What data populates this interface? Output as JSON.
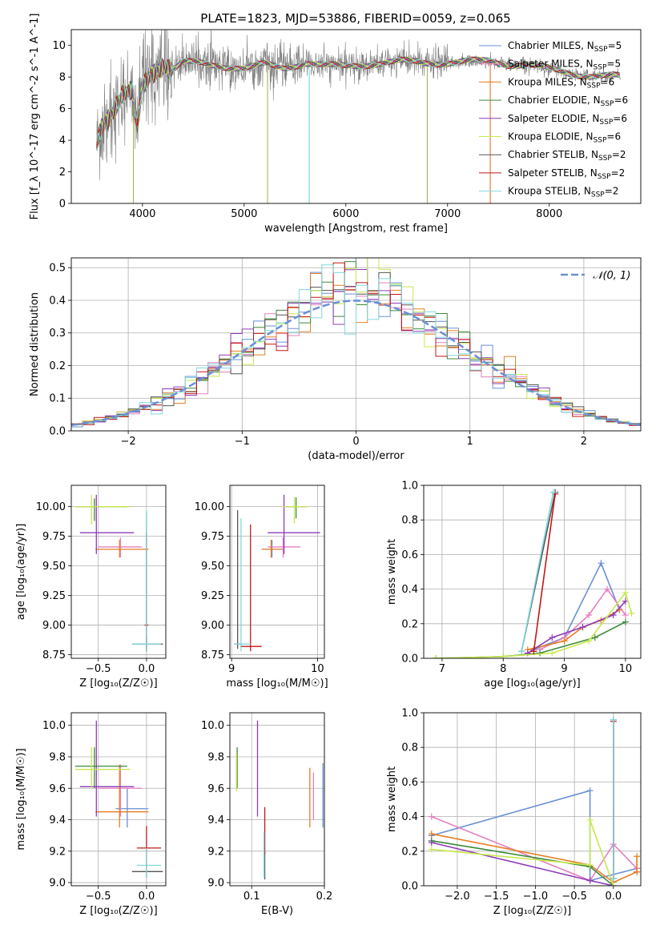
{
  "colors": {
    "Chabrier MILES": "#6a8fd6",
    "Salpeter MILES": "#e67fbf",
    "Kroupa MILES": "#e67e22",
    "Chabrier ELODIE": "#3c8a3c",
    "Salpeter ELODIE": "#8e3cb8",
    "Kroupa ELODIE": "#c8e84e",
    "Chabrier STELIB": "#555555",
    "Salpeter STELIB": "#c01818",
    "Kroupa STELIB": "#7fd8dc",
    "data": "#808080",
    "normal": "#6a8fd6",
    "grid": "#b0b0b0"
  },
  "chart_data": [
    {
      "id": "spectrum",
      "type": "line",
      "title": "PLATE=1823, MJD=53886, FIBERID=0059, z=0.065",
      "xlabel": "wavelength [Angstrom, rest frame]",
      "ylabel": "Flux [f_λ 10^-17 erg cm^-2 s^-1 A^-1]",
      "xlim": [
        3300,
        8900
      ],
      "ylim": [
        0,
        11
      ],
      "xticks": [
        "4000",
        "5000",
        "6000",
        "7000",
        "8000"
      ],
      "yticks": [
        "0",
        "2",
        "4",
        "6",
        "8",
        "10"
      ],
      "grid": false,
      "legend_position": "top-right",
      "legend": [
        {
          "model": "Chabrier MILES",
          "nssp": "5"
        },
        {
          "model": "Salpeter MILES",
          "nssp": "5"
        },
        {
          "model": "Kroupa MILES",
          "nssp": "6"
        },
        {
          "model": "Chabrier ELODIE",
          "nssp": "6"
        },
        {
          "model": "Salpeter ELODIE",
          "nssp": "6"
        },
        {
          "model": "Kroupa ELODIE",
          "nssp": "6"
        },
        {
          "model": "Chabrier STELIB",
          "nssp": "2"
        },
        {
          "model": "Salpeter STELIB",
          "nssp": "2"
        },
        {
          "model": "Kroupa STELIB",
          "nssp": "2"
        }
      ],
      "continuum": {
        "x": [
          3550,
          3600,
          3700,
          3800,
          3900,
          3950,
          4000,
          4100,
          4200,
          4300,
          4400,
          4600,
          4800,
          5000,
          5200,
          5400,
          5600,
          5800,
          6000,
          6200,
          6400,
          6600,
          6800,
          7000,
          7200,
          7400,
          7600,
          7800,
          8000,
          8200,
          8400,
          8600,
          8700
        ],
        "y": [
          3.8,
          4.8,
          5.5,
          6.8,
          7.2,
          5.0,
          7.6,
          8.3,
          8.7,
          8.4,
          8.9,
          8.9,
          8.7,
          8.5,
          8.8,
          8.6,
          8.9,
          8.7,
          8.7,
          8.8,
          8.9,
          9.0,
          8.9,
          8.9,
          9.0,
          9.0,
          8.8,
          8.8,
          8.5,
          8.2,
          8.1,
          8.1,
          8.0
        ]
      }
    },
    {
      "id": "residuals",
      "type": "histogram",
      "xlabel": "(data-model)/error",
      "ylabel": "Normed distribution",
      "xlim": [
        -2.5,
        2.5
      ],
      "ylim": [
        0,
        0.53
      ],
      "xticks": [
        "−2",
        "−1",
        "0",
        "1",
        "2"
      ],
      "yticks": [
        "0.0",
        "0.1",
        "0.2",
        "0.3",
        "0.4",
        "0.5"
      ],
      "grid": true,
      "legend_position": "top-right",
      "legend": "𝒩(0, 1)",
      "bin_width": 0.1,
      "bins_from": -2.5,
      "bins_to": 2.5
    },
    {
      "id": "age-Z",
      "type": "errorbar",
      "xlabel": "Z [log₁₀(Z/Z☉)]",
      "ylabel": "age  [log₁₀(age/yr)]",
      "xlim": [
        -0.78,
        0.2
      ],
      "ylim": [
        8.72,
        10.18
      ],
      "xticks": [
        "−0.5",
        "0.0"
      ],
      "yticks": [
        "8.75",
        "9.00",
        "9.25",
        "9.50",
        "9.75",
        "10.00"
      ],
      "grid": true,
      "points": [
        {
          "model": "Chabrier MILES",
          "x": 0.0,
          "xlo": -0.02,
          "xhi": 0.0,
          "y": 9.64,
          "ylo": 8.8,
          "yhi": 9.95
        },
        {
          "model": "Salpeter MILES",
          "x": -0.27,
          "xlo": -0.5,
          "xhi": -0.05,
          "y": 9.66,
          "ylo": 9.57,
          "yhi": 9.74
        },
        {
          "model": "Kroupa MILES",
          "x": -0.28,
          "xlo": -0.53,
          "xhi": 0.02,
          "y": 9.64,
          "ylo": 9.57,
          "yhi": 9.72
        },
        {
          "model": "Chabrier ELODIE",
          "x": -0.54,
          "xlo": -0.74,
          "xhi": -0.2,
          "y": 10.0,
          "ylo": 9.88,
          "yhi": 10.07
        },
        {
          "model": "Salpeter ELODIE",
          "x": -0.52,
          "xlo": -0.69,
          "xhi": -0.13,
          "y": 9.78,
          "ylo": 9.6,
          "yhi": 10.1
        },
        {
          "model": "Kroupa ELODIE",
          "x": -0.57,
          "xlo": -0.74,
          "xhi": -0.17,
          "y": 10.0,
          "ylo": 9.85,
          "yhi": 10.1
        },
        {
          "model": "Chabrier STELIB",
          "x": 0.0,
          "xlo": -0.15,
          "xhi": 0.17,
          "y": 8.84,
          "ylo": 8.78,
          "yhi": 8.9
        },
        {
          "model": "Salpeter STELIB",
          "x": 0.0,
          "xlo": -0.02,
          "xhi": 0.02,
          "y": 9.0,
          "ylo": 8.78,
          "yhi": 9.78
        },
        {
          "model": "Kroupa STELIB",
          "x": 0.0,
          "xlo": -0.15,
          "xhi": 0.15,
          "y": 8.84,
          "ylo": 8.78,
          "yhi": 9.97
        }
      ]
    },
    {
      "id": "age-mass",
      "type": "errorbar",
      "xlabel": "mass [log₁₀(M/M☉)]",
      "ylabel": "",
      "xlim": [
        8.98,
        10.08
      ],
      "ylim": [
        8.72,
        10.18
      ],
      "xticks": [
        "9",
        "10"
      ],
      "yticks": [
        "8.75",
        "9.00",
        "9.25",
        "9.50",
        "9.75",
        "10.00"
      ],
      "grid": true,
      "points": [
        {
          "model": "Chabrier MILES",
          "x": 9.47,
          "xlo": 9.35,
          "xhi": 9.6,
          "y": 9.64,
          "ylo": 9.57,
          "yhi": 9.72
        },
        {
          "model": "Salpeter MILES",
          "x": 9.6,
          "xlo": 9.42,
          "xhi": 9.8,
          "y": 9.66,
          "ylo": 9.57,
          "yhi": 9.74
        },
        {
          "model": "Kroupa MILES",
          "x": 9.46,
          "xlo": 9.35,
          "xhi": 9.58,
          "y": 9.64,
          "ylo": 9.57,
          "yhi": 9.72
        },
        {
          "model": "Chabrier ELODIE",
          "x": 9.75,
          "xlo": 9.6,
          "xhi": 9.88,
          "y": 10.0,
          "ylo": 9.9,
          "yhi": 10.08
        },
        {
          "model": "Salpeter ELODIE",
          "x": 9.61,
          "xlo": 9.42,
          "xhi": 10.03,
          "y": 9.78,
          "ylo": 9.6,
          "yhi": 10.1
        },
        {
          "model": "Kroupa ELODIE",
          "x": 9.73,
          "xlo": 9.6,
          "xhi": 9.88,
          "y": 10.0,
          "ylo": 9.86,
          "yhi": 10.08
        },
        {
          "model": "Chabrier STELIB",
          "x": 9.07,
          "xlo": 9.03,
          "xhi": 9.12,
          "y": 8.84,
          "ylo": 8.8,
          "yhi": 9.97
        },
        {
          "model": "Salpeter STELIB",
          "x": 9.22,
          "xlo": 9.1,
          "xhi": 9.35,
          "y": 8.82,
          "ylo": 8.78,
          "yhi": 9.85
        },
        {
          "model": "Kroupa STELIB",
          "x": 9.11,
          "xlo": 9.03,
          "xhi": 9.22,
          "y": 8.84,
          "ylo": 8.78,
          "yhi": 9.9
        }
      ]
    },
    {
      "id": "weight-age",
      "type": "line",
      "xlabel": "age  [log₁₀(age/yr)]",
      "ylabel": "mass weight",
      "xlim": [
        6.7,
        10.25
      ],
      "ylim": [
        0,
        1.0
      ],
      "xticks": [
        "7",
        "8",
        "9",
        "10"
      ],
      "yticks": [
        "0.0",
        "0.2",
        "0.4",
        "0.6",
        "0.8",
        "1.0"
      ],
      "grid": true,
      "series": [
        {
          "model": "Chabrier MILES",
          "x": [
            8.5,
            9.0,
            9.6,
            9.9
          ],
          "y": [
            0.05,
            0.12,
            0.55,
            0.28
          ]
        },
        {
          "model": "Salpeter MILES",
          "x": [
            8.6,
            9.0,
            9.4,
            9.7,
            10.0
          ],
          "y": [
            0.05,
            0.12,
            0.25,
            0.4,
            0.25
          ]
        },
        {
          "model": "Kroupa MILES",
          "x": [
            8.4,
            9.0,
            9.3,
            9.6,
            9.9
          ],
          "y": [
            0.05,
            0.1,
            0.18,
            0.22,
            0.28
          ]
        },
        {
          "model": "Chabrier ELODIE",
          "x": [
            6.9,
            8.0,
            8.6,
            9.5,
            10.0
          ],
          "y": [
            0.0,
            0.01,
            0.03,
            0.12,
            0.21
          ]
        },
        {
          "model": "Salpeter ELODIE",
          "x": [
            8.4,
            8.8,
            9.3,
            9.8,
            10.0
          ],
          "y": [
            0.03,
            0.12,
            0.18,
            0.25,
            0.33
          ]
        },
        {
          "model": "Kroupa ELODIE",
          "x": [
            6.9,
            8.0,
            8.8,
            9.4,
            10.0,
            10.1
          ],
          "y": [
            0.0,
            0.01,
            0.03,
            0.1,
            0.38,
            0.26
          ]
        },
        {
          "model": "Chabrier STELIB",
          "x": [
            8.3,
            8.85
          ],
          "y": [
            0.04,
            0.96
          ]
        },
        {
          "model": "Salpeter STELIB",
          "x": [
            8.5,
            8.85
          ],
          "y": [
            0.04,
            0.95
          ]
        },
        {
          "model": "Kroupa STELIB",
          "x": [
            8.3,
            8.82
          ],
          "y": [
            0.04,
            0.96
          ]
        }
      ]
    },
    {
      "id": "mass-Z",
      "type": "errorbar",
      "xlabel": "Z [log₁₀(Z/Z☉)]",
      "ylabel": "mass [log₁₀(M/M☉)]",
      "xlim": [
        -0.78,
        0.2
      ],
      "ylim": [
        8.98,
        10.08
      ],
      "xticks": [
        "−0.5",
        "0.0"
      ],
      "yticks": [
        "9.0",
        "9.2",
        "9.4",
        "9.6",
        "9.8",
        "10.0"
      ],
      "grid": true,
      "points": [
        {
          "model": "Chabrier MILES",
          "x": -0.2,
          "xlo": -0.32,
          "xhi": 0.02,
          "y": 9.47,
          "ylo": 9.35,
          "yhi": 9.6
        },
        {
          "model": "Salpeter MILES",
          "x": -0.27,
          "xlo": -0.5,
          "xhi": -0.05,
          "y": 9.6,
          "ylo": 9.42,
          "yhi": 9.75
        },
        {
          "model": "Kroupa MILES",
          "x": -0.28,
          "xlo": -0.53,
          "xhi": 0.02,
          "y": 9.45,
          "ylo": 9.35,
          "yhi": 9.75
        },
        {
          "model": "Chabrier ELODIE",
          "x": -0.54,
          "xlo": -0.74,
          "xhi": -0.2,
          "y": 9.74,
          "ylo": 9.6,
          "yhi": 9.86
        },
        {
          "model": "Salpeter ELODIE",
          "x": -0.52,
          "xlo": -0.69,
          "xhi": -0.13,
          "y": 9.61,
          "ylo": 9.42,
          "yhi": 10.03
        },
        {
          "model": "Kroupa ELODIE",
          "x": -0.57,
          "xlo": -0.74,
          "xhi": -0.17,
          "y": 9.72,
          "ylo": 9.6,
          "yhi": 9.86
        },
        {
          "model": "Chabrier STELIB",
          "x": 0.0,
          "xlo": -0.15,
          "xhi": 0.17,
          "y": 9.07,
          "ylo": 9.03,
          "yhi": 9.12
        },
        {
          "model": "Salpeter STELIB",
          "x": 0.0,
          "xlo": -0.1,
          "xhi": 0.15,
          "y": 9.22,
          "ylo": 9.1,
          "yhi": 9.36
        },
        {
          "model": "Kroupa STELIB",
          "x": 0.0,
          "xlo": -0.1,
          "xhi": 0.15,
          "y": 9.11,
          "ylo": 9.03,
          "yhi": 9.22
        }
      ]
    },
    {
      "id": "mass-EBV",
      "type": "errorbar",
      "xlabel": "E(B-V)",
      "ylabel": "",
      "xlim": [
        0.07,
        0.2
      ],
      "ylim": [
        8.98,
        10.08
      ],
      "xticks": [
        "0.1",
        "0.2"
      ],
      "yticks": [
        "9.0",
        "9.2",
        "9.4",
        "9.6",
        "9.8",
        "10.0"
      ],
      "grid": true,
      "points": [
        {
          "model": "Chabrier MILES",
          "x": 0.198,
          "y": 9.55,
          "ylo": 9.35,
          "yhi": 9.76
        },
        {
          "model": "Salpeter MILES",
          "x": 0.185,
          "y": 9.55,
          "ylo": 9.4,
          "yhi": 9.7
        },
        {
          "model": "Kroupa MILES",
          "x": 0.18,
          "y": 9.55,
          "ylo": 9.35,
          "yhi": 9.73
        },
        {
          "model": "Chabrier ELODIE",
          "x": 0.08,
          "y": 9.7,
          "ylo": 9.6,
          "yhi": 9.86
        },
        {
          "model": "Salpeter ELODIE",
          "x": 0.108,
          "y": 9.72,
          "ylo": 9.42,
          "yhi": 10.03
        },
        {
          "model": "Kroupa ELODIE",
          "x": 0.079,
          "y": 9.7,
          "ylo": 9.58,
          "yhi": 9.82
        },
        {
          "model": "Chabrier STELIB",
          "x": 0.118,
          "y": 9.1,
          "ylo": 9.02,
          "yhi": 9.2
        },
        {
          "model": "Salpeter STELIB",
          "x": 0.118,
          "y": 9.35,
          "ylo": 9.18,
          "yhi": 9.48
        },
        {
          "model": "Kroupa STELIB",
          "x": 0.117,
          "y": 9.2,
          "ylo": 9.03,
          "yhi": 9.32
        }
      ]
    },
    {
      "id": "weight-Z",
      "type": "line",
      "xlabel": "Z [log₁₀(Z/Z☉)]",
      "ylabel": "mass weight",
      "xlim": [
        -2.43,
        0.35
      ],
      "ylim": [
        0,
        1.0
      ],
      "xticks": [
        "−2.0",
        "−1.5",
        "−1.0",
        "−0.5",
        "0.0"
      ],
      "yticks": [
        "0.0",
        "0.2",
        "0.4",
        "0.6",
        "0.8",
        "1.0"
      ],
      "grid": true,
      "series": [
        {
          "model": "Chabrier MILES",
          "x": [
            -2.33,
            -0.3,
            -0.3,
            0.3,
            0.3
          ],
          "y": [
            0.29,
            0.55,
            0.03,
            0.1,
            0.08
          ]
        },
        {
          "model": "Salpeter MILES",
          "x": [
            -2.33,
            -0.3,
            0.0,
            0.3
          ],
          "y": [
            0.4,
            0.03,
            0.24,
            0.1
          ]
        },
        {
          "model": "Kroupa MILES",
          "x": [
            -2.33,
            -0.3,
            0.0,
            0.3,
            0.3
          ],
          "y": [
            0.3,
            0.12,
            0.02,
            0.08,
            0.17
          ]
        },
        {
          "model": "Chabrier ELODIE",
          "x": [
            -2.33,
            -0.3,
            0.0
          ],
          "y": [
            0.26,
            0.11,
            0.0
          ]
        },
        {
          "model": "Salpeter ELODIE",
          "x": [
            -2.33,
            -0.3,
            0.0
          ],
          "y": [
            0.25,
            0.03,
            0.0
          ]
        },
        {
          "model": "Kroupa ELODIE",
          "x": [
            -2.33,
            -0.3,
            -0.3,
            0.0
          ],
          "y": [
            0.21,
            0.12,
            0.38,
            0.0
          ]
        },
        {
          "model": "Chabrier STELIB",
          "x": [
            0.0,
            0.0
          ],
          "y": [
            0.04,
            0.96
          ]
        },
        {
          "model": "Salpeter STELIB",
          "x": [
            0.0,
            0.0
          ],
          "y": [
            0.04,
            0.95
          ]
        },
        {
          "model": "Kroupa STELIB",
          "x": [
            0.0,
            0.0
          ],
          "y": [
            0.04,
            0.96
          ]
        }
      ]
    }
  ]
}
